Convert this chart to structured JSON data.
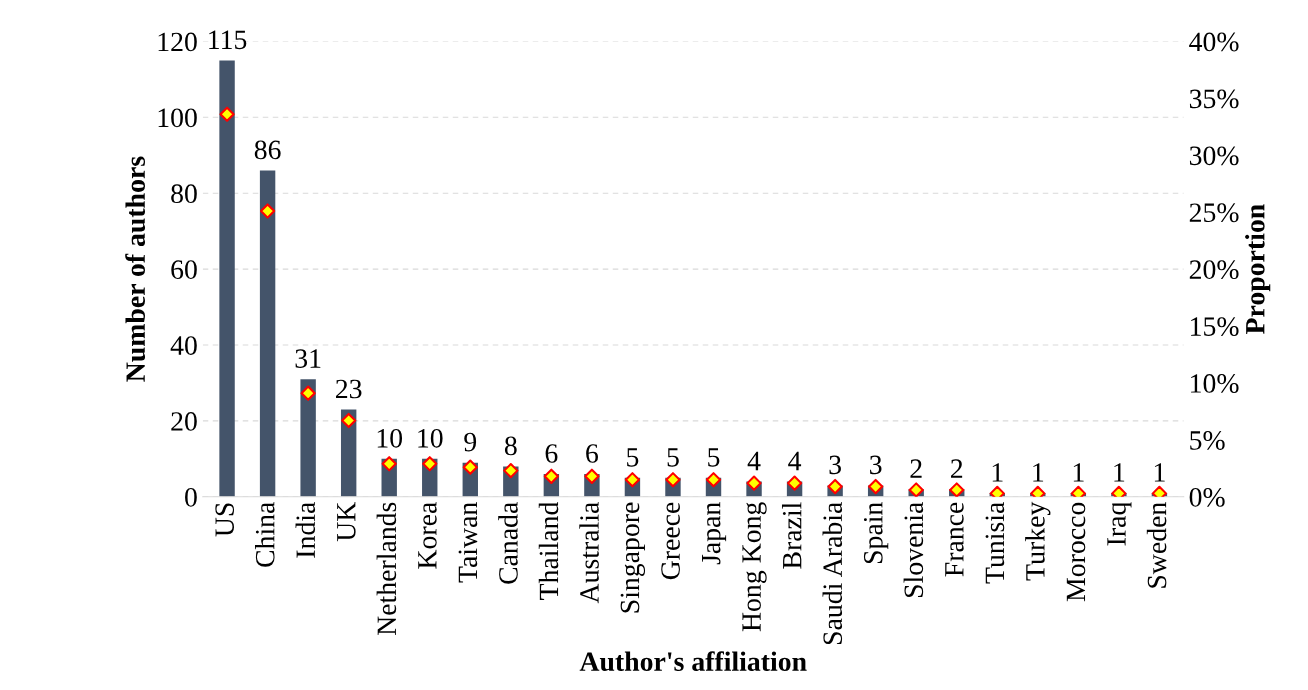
{
  "chart_data": {
    "type": "bar",
    "xlabel": "Author's affiliation",
    "ylabel": "Number of authors",
    "y2label": "Proportion",
    "categories": [
      "US",
      "China",
      "India",
      "UK",
      "Netherlands",
      "Korea",
      "Taiwan",
      "Canada",
      "Thailand",
      "Australia",
      "Singapore",
      "Greece",
      "Japan",
      "Hong Kong",
      "Brazil",
      "Saudi Arabia",
      "Spain",
      "Slovenia",
      "France",
      "Tunisia",
      "Turkey",
      "Morocco",
      "Iraq",
      "Sweden"
    ],
    "series": [
      {
        "color": "#44546a",
        "values": [
          115,
          86,
          31,
          23,
          10,
          10,
          9,
          8,
          6,
          6,
          5,
          5,
          5,
          4,
          4,
          3,
          3,
          2,
          2,
          1,
          1,
          1,
          1,
          1
        ],
        "value_labels": [
          "115",
          "86",
          "31",
          "23",
          "10",
          "10",
          "9",
          "8",
          "6",
          "6",
          "5",
          "5",
          "5",
          "4",
          "4",
          "3",
          "3",
          "2",
          "2",
          "1",
          "1",
          "1",
          "1",
          "1"
        ]
      },
      {
        "type": "scatter",
        "axis": "y2",
        "marker": "diamond",
        "color": "#ffff00",
        "values": [
          33.6,
          25.1,
          9.1,
          6.7,
          2.9,
          2.9,
          2.6,
          2.3,
          1.8,
          1.8,
          1.5,
          1.5,
          1.5,
          1.2,
          1.2,
          0.9,
          0.9,
          0.6,
          0.6,
          0.3,
          0.3,
          0.3,
          0.3,
          0.3
        ]
      }
    ],
    "ylim": [
      0,
      120
    ],
    "yticks": [
      0,
      20,
      40,
      60,
      80,
      100,
      120
    ],
    "y2lim": [
      0,
      40
    ],
    "y2ticks": [
      {
        "value": 0,
        "label": "0%"
      },
      {
        "value": 5,
        "label": "5%"
      },
      {
        "value": 10,
        "label": "10%"
      },
      {
        "value": 15,
        "label": "15%"
      },
      {
        "value": 20,
        "label": "20%"
      },
      {
        "value": 25,
        "label": "25%"
      },
      {
        "value": 30,
        "label": "30%"
      },
      {
        "value": 35,
        "label": "35%"
      },
      {
        "value": 40,
        "label": "40%"
      }
    ],
    "grid": "y"
  }
}
